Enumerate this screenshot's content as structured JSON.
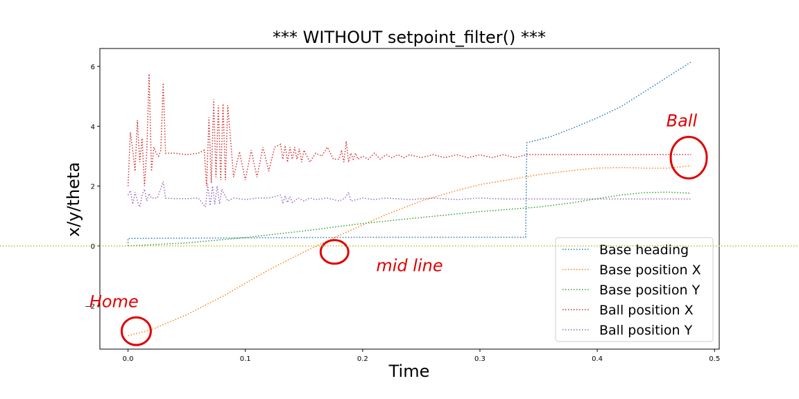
{
  "chart_data": {
    "type": "line",
    "title": "*** WITHOUT setpoint_filter() ***",
    "xlabel": "Time",
    "ylabel": "x/y/theta",
    "xlim": [
      -0.024,
      0.504
    ],
    "ylim": [
      -3.45,
      6.6
    ],
    "xticks": [
      0.0,
      0.1,
      0.2,
      0.3,
      0.4,
      0.5
    ],
    "xtick_labels": [
      "0.0",
      "0.1",
      "0.2",
      "0.3",
      "0.4",
      "0.5"
    ],
    "yticks": [
      -2,
      0,
      2,
      4,
      6
    ],
    "ytick_labels": [
      "−2",
      "0",
      "2",
      "4",
      "6"
    ],
    "grid": false,
    "legend_position": "lower-right",
    "series": [
      {
        "name": "Base heading",
        "color": "#1f77b4",
        "style": "dotted",
        "x": [
          0.0,
          0.0,
          0.003,
          0.05,
          0.1,
          0.15,
          0.2,
          0.25,
          0.3,
          0.339,
          0.34,
          0.345,
          0.36,
          0.38,
          0.4,
          0.42,
          0.44,
          0.46,
          0.48
        ],
        "y": [
          0.0,
          0.25,
          0.25,
          0.26,
          0.27,
          0.28,
          0.29,
          0.29,
          0.29,
          0.29,
          3.45,
          3.5,
          3.65,
          3.95,
          4.28,
          4.65,
          5.15,
          5.65,
          6.15
        ]
      },
      {
        "name": "Base position X",
        "color": "#ff7f0e",
        "style": "dotted",
        "x": [
          0.0,
          0.02,
          0.05,
          0.08,
          0.1,
          0.12,
          0.15,
          0.18,
          0.2,
          0.22,
          0.25,
          0.28,
          0.3,
          0.33,
          0.35,
          0.38,
          0.4,
          0.42,
          0.44,
          0.46,
          0.48
        ],
        "y": [
          -3.0,
          -2.8,
          -2.3,
          -1.7,
          -1.25,
          -0.8,
          -0.2,
          0.35,
          0.7,
          1.05,
          1.5,
          1.85,
          2.05,
          2.25,
          2.38,
          2.53,
          2.6,
          2.62,
          2.6,
          2.6,
          2.68
        ]
      },
      {
        "name": "Base position Y",
        "color": "#2ca02c",
        "style": "dotted",
        "x": [
          0.0,
          0.05,
          0.1,
          0.15,
          0.2,
          0.25,
          0.3,
          0.35,
          0.38,
          0.4,
          0.42,
          0.44,
          0.46,
          0.48
        ],
        "y": [
          0.0,
          0.1,
          0.28,
          0.5,
          0.75,
          0.95,
          1.15,
          1.3,
          1.45,
          1.58,
          1.7,
          1.78,
          1.8,
          1.76
        ]
      },
      {
        "name": "Ball position X",
        "color": "#d62728",
        "style": "dotted",
        "x": [
          0.0,
          0.002,
          0.004,
          0.006,
          0.008,
          0.01,
          0.012,
          0.014,
          0.016,
          0.018,
          0.02,
          0.022,
          0.024,
          0.026,
          0.028,
          0.03,
          0.032,
          0.04,
          0.05,
          0.06,
          0.065,
          0.067,
          0.069,
          0.071,
          0.073,
          0.075,
          0.077,
          0.079,
          0.081,
          0.083,
          0.085,
          0.09,
          0.095,
          0.1,
          0.105,
          0.11,
          0.115,
          0.12,
          0.125,
          0.13,
          0.132,
          0.134,
          0.136,
          0.138,
          0.14,
          0.142,
          0.144,
          0.146,
          0.148,
          0.15,
          0.155,
          0.16,
          0.165,
          0.17,
          0.175,
          0.18,
          0.182,
          0.184,
          0.186,
          0.188,
          0.19,
          0.192,
          0.194,
          0.196,
          0.2,
          0.205,
          0.21,
          0.215,
          0.22,
          0.225,
          0.23,
          0.235,
          0.24,
          0.25,
          0.26,
          0.27,
          0.28,
          0.29,
          0.3,
          0.31,
          0.32,
          0.33,
          0.34,
          0.36,
          0.4,
          0.44,
          0.48
        ],
        "y": [
          2.0,
          3.8,
          3.2,
          2.5,
          4.2,
          2.8,
          3.6,
          2.0,
          3.2,
          5.75,
          2.5,
          3.3,
          3.1,
          3.0,
          3.2,
          5.45,
          3.1,
          3.1,
          3.05,
          3.1,
          3.2,
          2.0,
          4.3,
          2.1,
          4.9,
          2.3,
          4.7,
          2.2,
          4.75,
          2.2,
          4.7,
          2.3,
          3.15,
          2.2,
          3.2,
          2.3,
          3.3,
          2.5,
          3.3,
          3.4,
          2.9,
          3.35,
          2.8,
          3.3,
          2.9,
          3.3,
          2.9,
          3.25,
          2.8,
          3.2,
          2.8,
          3.1,
          3.0,
          3.3,
          2.9,
          2.9,
          3.2,
          2.8,
          3.5,
          2.8,
          3.1,
          2.9,
          3.1,
          2.9,
          3.0,
          2.9,
          3.1,
          2.9,
          3.05,
          2.95,
          3.05,
          2.95,
          3.05,
          2.95,
          3.05,
          2.95,
          3.05,
          2.95,
          3.05,
          2.95,
          3.05,
          2.95,
          3.05,
          3.05,
          3.05,
          3.05,
          3.05
        ]
      },
      {
        "name": "Ball position Y",
        "color": "#9467bd",
        "style": "dotted",
        "x": [
          0.0,
          0.002,
          0.004,
          0.006,
          0.008,
          0.01,
          0.012,
          0.014,
          0.016,
          0.018,
          0.02,
          0.025,
          0.03,
          0.032,
          0.04,
          0.05,
          0.06,
          0.066,
          0.068,
          0.07,
          0.072,
          0.074,
          0.076,
          0.078,
          0.08,
          0.085,
          0.09,
          0.1,
          0.11,
          0.12,
          0.13,
          0.132,
          0.134,
          0.136,
          0.138,
          0.14,
          0.145,
          0.15,
          0.155,
          0.16,
          0.17,
          0.18,
          0.185,
          0.188,
          0.19,
          0.2,
          0.21,
          0.22,
          0.24,
          0.26,
          0.28,
          0.3,
          0.32,
          0.34,
          0.4,
          0.48
        ],
        "y": [
          1.7,
          1.85,
          1.4,
          1.8,
          1.5,
          1.3,
          1.7,
          1.9,
          1.5,
          1.75,
          1.6,
          1.6,
          2.15,
          1.6,
          1.58,
          1.58,
          1.6,
          1.3,
          2.05,
          1.35,
          2.0,
          1.4,
          2.0,
          1.4,
          1.9,
          1.5,
          1.6,
          1.55,
          1.6,
          1.6,
          1.7,
          1.45,
          1.65,
          1.45,
          1.65,
          1.45,
          1.6,
          1.5,
          1.6,
          1.55,
          1.6,
          1.5,
          1.6,
          1.8,
          1.5,
          1.6,
          1.55,
          1.6,
          1.55,
          1.6,
          1.55,
          1.6,
          1.57,
          1.57,
          1.57,
          1.57
        ]
      }
    ],
    "reference_lines": [
      {
        "type": "horizontal",
        "y": 0,
        "color": "#bcbd22",
        "style": "dotted"
      }
    ],
    "annotations": [
      {
        "text": "Ball",
        "color": "#e00000",
        "x": 0.472,
        "y": 4.0
      },
      {
        "text": "mid line",
        "color": "#e00000",
        "x": 0.24,
        "y": -0.85
      },
      {
        "text": "Home",
        "color": "#e00000",
        "x": -0.012,
        "y": -2.05
      }
    ]
  }
}
